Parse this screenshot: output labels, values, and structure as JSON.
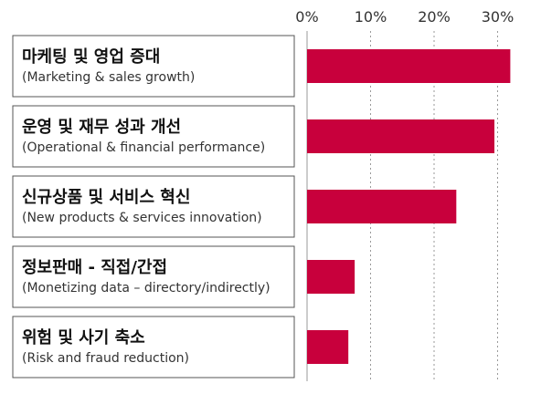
{
  "chart_data": {
    "type": "bar",
    "orientation": "horizontal",
    "categories": [
      {
        "label": "마케팅 및 영업 증대",
        "sublabel": "(Marketing & sales growth)"
      },
      {
        "label": "운영 및 재무 성과 개선",
        "sublabel": "(Operational & financial performance)"
      },
      {
        "label": "신규상품 및 서비스 혁신",
        "sublabel": "(New products & services innovation)"
      },
      {
        "label": "정보판매 - 직접/간접",
        "sublabel": "(Monetizing data – directory/indirectly)"
      },
      {
        "label": "위험 및 사기 축소",
        "sublabel": "(Risk and fraud reduction)"
      }
    ],
    "values": [
      32,
      29.5,
      23.5,
      7.5,
      6.5
    ],
    "value_unit": "%",
    "xlim": [
      0,
      32
    ],
    "x_ticks": [
      {
        "value": 0,
        "label": "0%"
      },
      {
        "value": 10,
        "label": "10%"
      },
      {
        "value": 20,
        "label": "20%"
      },
      {
        "value": 30,
        "label": "30%"
      }
    ],
    "axis_position": "top",
    "grid": "vertical dotted",
    "bar_color": "#c8003c",
    "title": "",
    "xlabel": "",
    "ylabel": ""
  }
}
